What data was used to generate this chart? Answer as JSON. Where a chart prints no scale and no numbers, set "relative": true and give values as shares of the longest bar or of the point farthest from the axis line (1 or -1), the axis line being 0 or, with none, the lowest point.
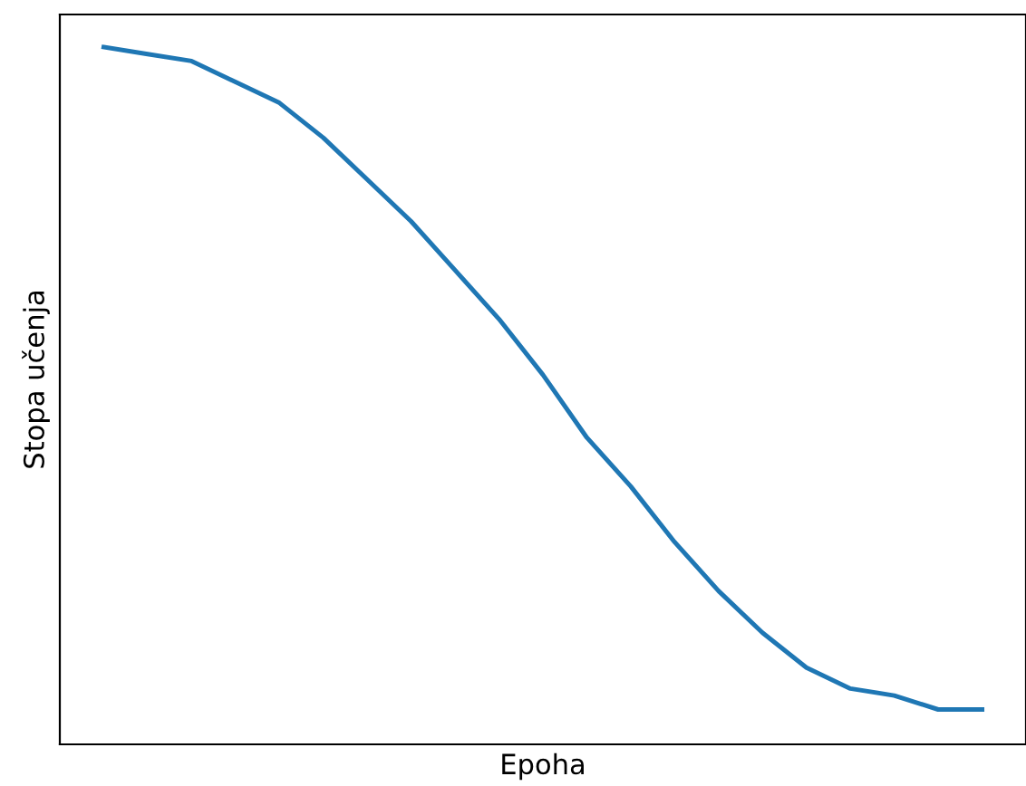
{
  "chart_data": {
    "type": "line",
    "relative": true,
    "xlabel": "Epoha",
    "ylabel": "Stopa učenja",
    "categories": [
      null,
      null,
      null,
      null,
      null,
      null,
      null,
      null,
      null,
      null,
      null,
      null,
      null,
      null,
      null,
      null,
      null,
      null,
      null,
      null,
      null
    ],
    "series": [
      {
        "color": "#1f77b4",
        "values": [
          1.0,
          0.99,
          0.98,
          0.95,
          0.92,
          0.87,
          0.81,
          0.75,
          0.68,
          0.61,
          0.53,
          0.44,
          0.37,
          0.29,
          0.22,
          0.16,
          0.11,
          0.08,
          0.07,
          0.05,
          0.05
        ]
      }
    ],
    "grid": false,
    "legend": false
  }
}
